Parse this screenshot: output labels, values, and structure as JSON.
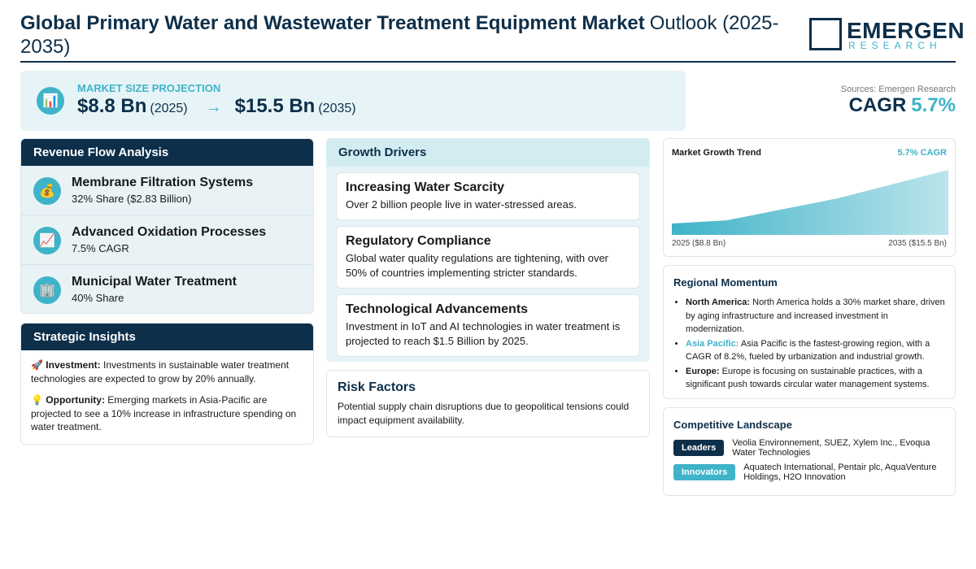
{
  "header": {
    "title_bold": "Global Primary Water and Wastewater Treatment Equipment Market",
    "title_rest": "Outlook (2025-2035)",
    "logo_top": "EMERGEN",
    "logo_bottom": "RESEARCH"
  },
  "projection": {
    "icon": "📊",
    "label": "MARKET SIZE PROJECTION",
    "start_value": "$8.8 Bn",
    "start_year": "(2025)",
    "arrow": "→",
    "end_value": "$15.5 Bn",
    "end_year": "(2035)"
  },
  "summary": {
    "sources": "Sources: Emergen Research",
    "cagr_label": "CAGR",
    "cagr_value": "5.7%"
  },
  "revenue_flow": {
    "title": "Revenue Flow Analysis",
    "items": [
      {
        "icon": "💰",
        "name": "Membrane Filtration Systems",
        "detail": "32% Share ($2.83 Billion)"
      },
      {
        "icon": "📈",
        "name": "Advanced Oxidation Processes",
        "detail": "7.5% CAGR"
      },
      {
        "icon": "🏢",
        "name": "Municipal Water Treatment",
        "detail": "40% Share"
      }
    ]
  },
  "strategic_insights": {
    "title": "Strategic Insights",
    "items": [
      {
        "icon": "🚀",
        "label": "Investment:",
        "text": "Investments in sustainable water treatment technologies are expected to grow by 20% annually."
      },
      {
        "icon": "💡",
        "label": "Opportunity:",
        "text": "Emerging markets in Asia-Pacific are projected to see a 10% increase in infrastructure spending on water treatment."
      }
    ]
  },
  "growth_drivers": {
    "title": "Growth Drivers",
    "items": [
      {
        "title": "Increasing Water Scarcity",
        "text": "Over 2 billion people live in water-stressed areas."
      },
      {
        "title": "Regulatory Compliance",
        "text": "Global water quality regulations are tightening, with over 50% of countries implementing stricter standards."
      },
      {
        "title": "Technological Advancements",
        "text": "Investment in IoT and AI technologies in water treatment is projected to reach $1.5 Billion by 2025."
      }
    ]
  },
  "risk_factors": {
    "title": "Risk Factors",
    "text": "Potential supply chain disruptions due to geopolitical tensions could impact equipment availability."
  },
  "market_trend": {
    "title": "Market Growth Trend",
    "cagr": "5.7% CAGR",
    "start_label": "2025 ($8.8 Bn)",
    "end_label": "2035 ($15.5 Bn)"
  },
  "regional_momentum": {
    "title": "Regional Momentum",
    "items": [
      {
        "region": "North America:",
        "text": "North America holds a 30% market share, driven by aging infrastructure and increased investment in modernization."
      },
      {
        "region": "Asia Pacific:",
        "text": "Asia Pacific is the fastest-growing region, with a CAGR of 8.2%, fueled by urbanization and industrial growth."
      },
      {
        "region": "Europe:",
        "text": "Europe is focusing on sustainable practices, with a significant push towards circular water management systems."
      }
    ]
  },
  "competitive_landscape": {
    "title": "Competitive Landscape",
    "groups": [
      {
        "label": "Leaders",
        "companies": "Veolia Environnement, SUEZ, Xylem Inc., Evoqua Water Technologies"
      },
      {
        "label": "Innovators",
        "companies": "Aquatech International, Pentair plc, AquaVenture Holdings, H2O Innovation"
      }
    ]
  }
}
